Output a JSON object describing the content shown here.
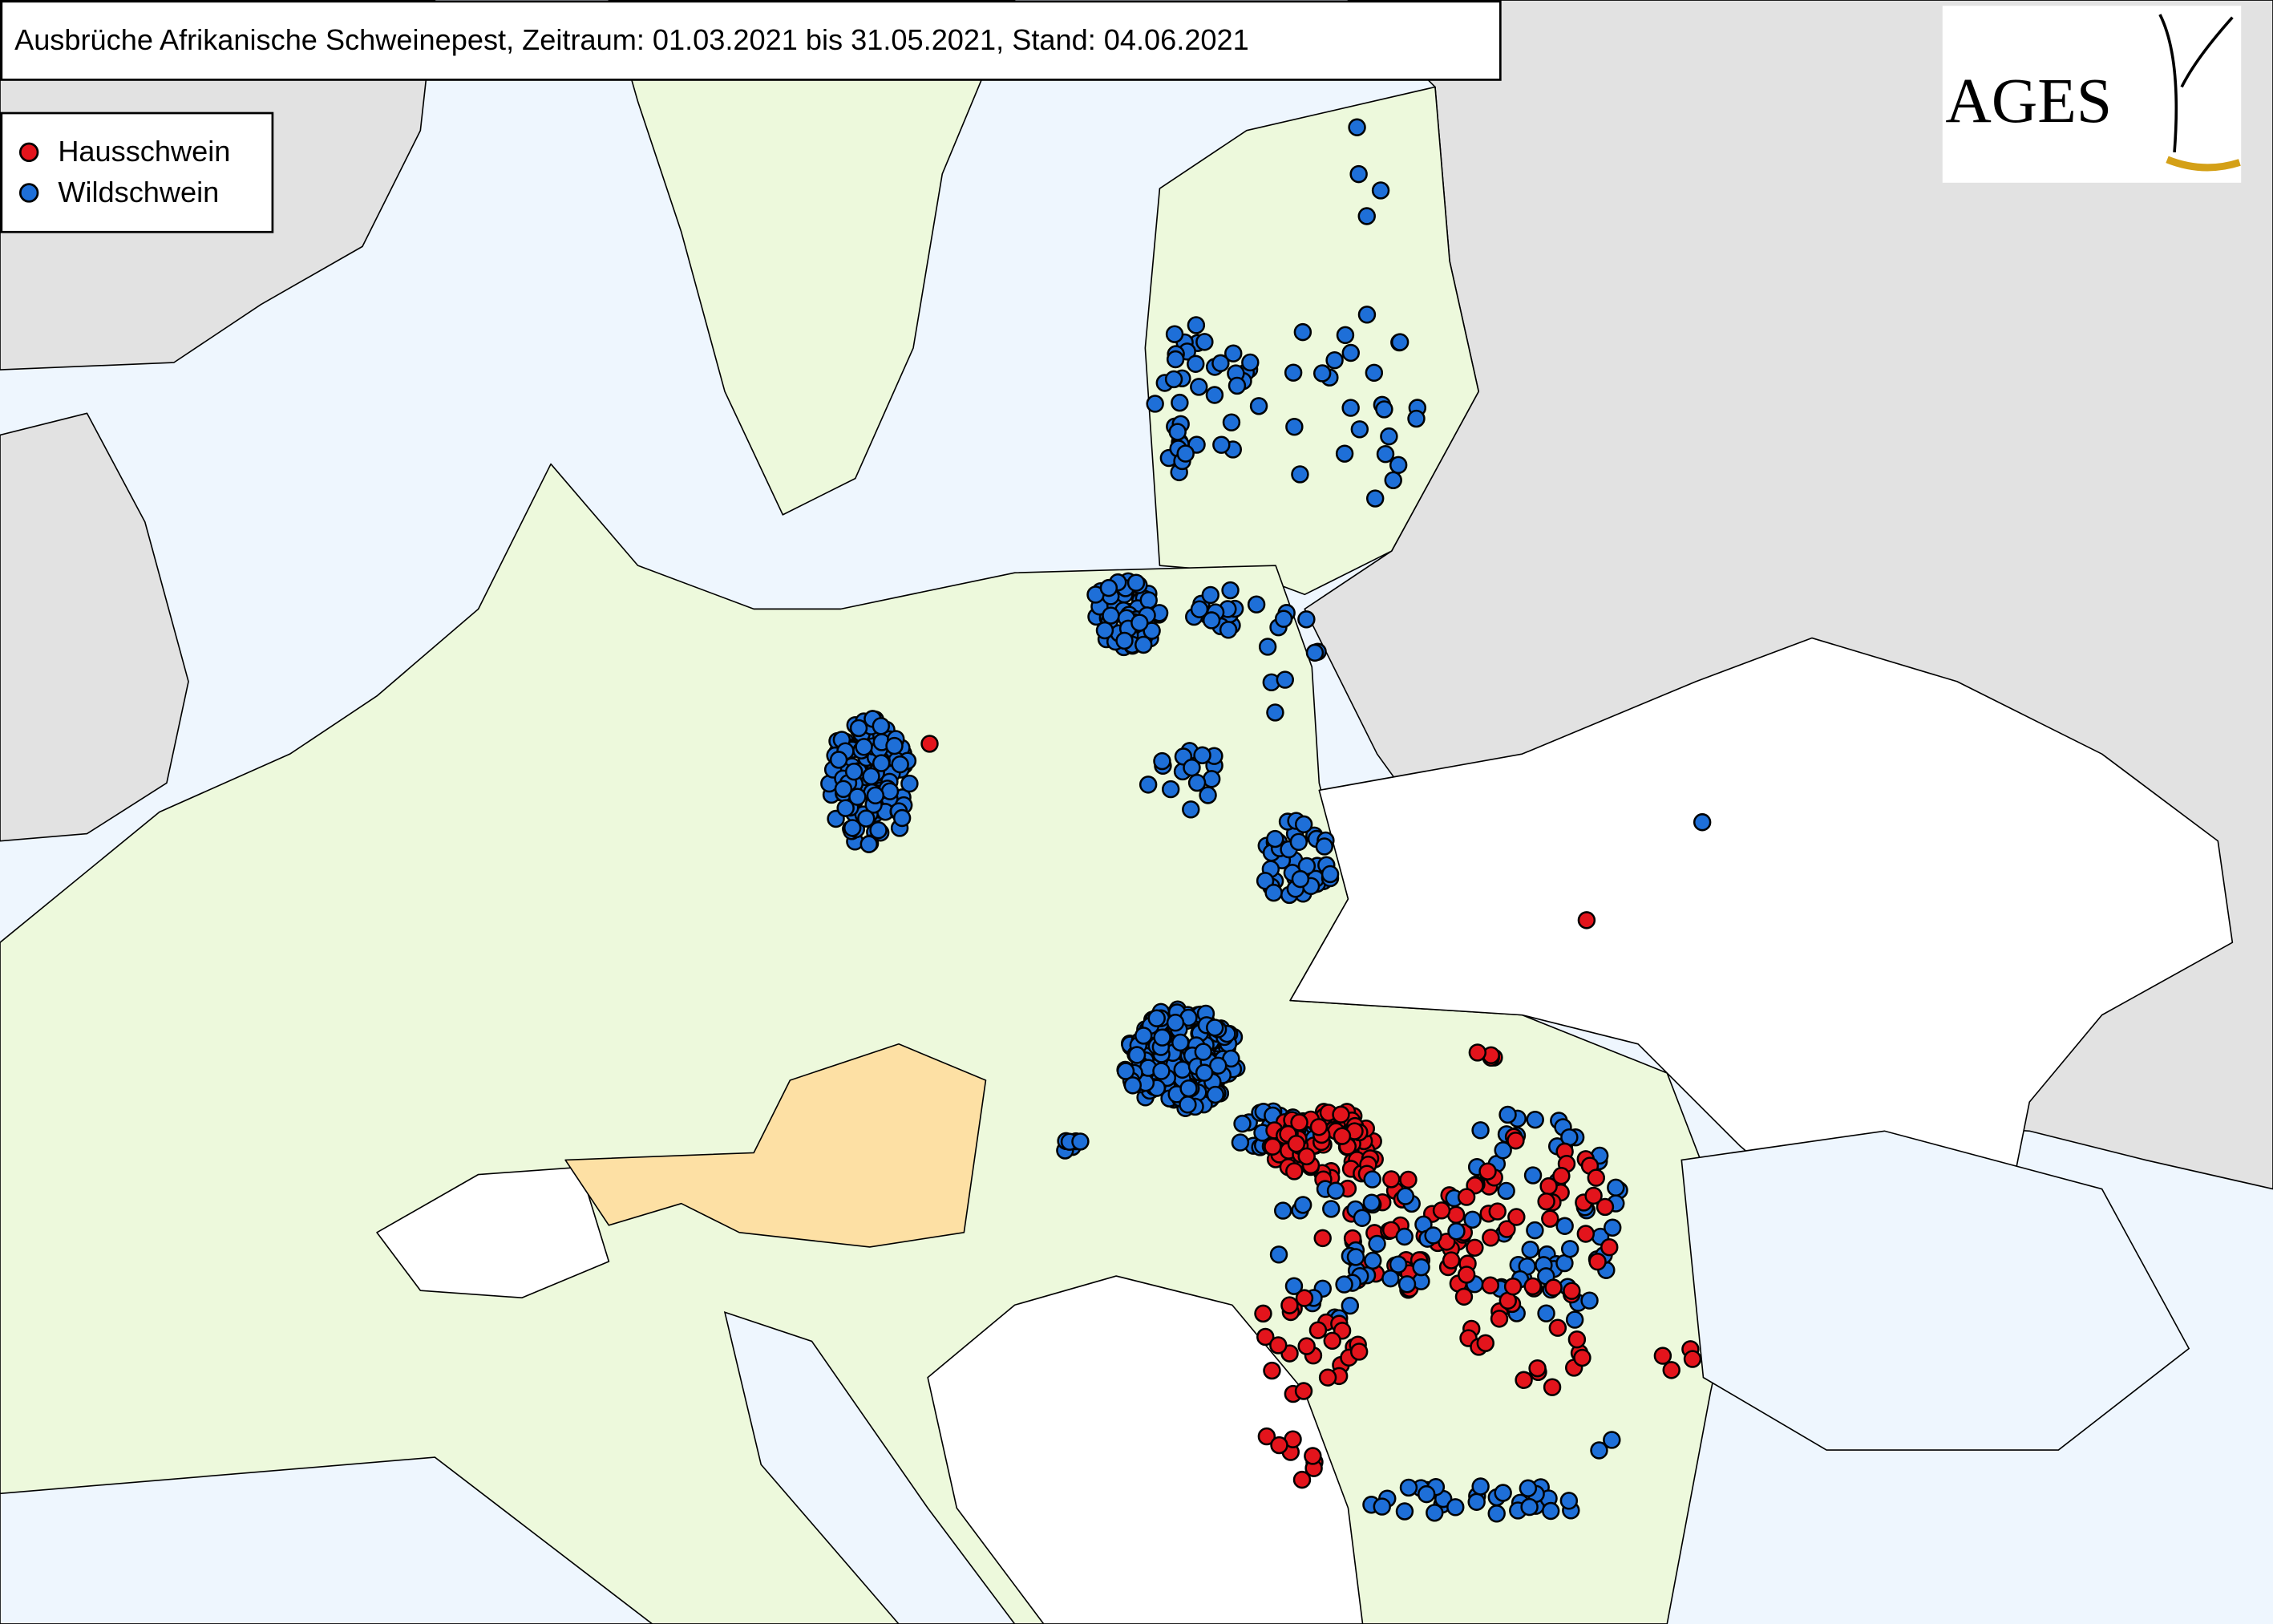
{
  "title": "Ausbrüche Afrikanische Schweinepest, Zeitraum: 01.03.2021 bis 31.05.2021, Stand: 04.06.2021",
  "legend": [
    {
      "label": "Hausschwein",
      "color": "#e3141c"
    },
    {
      "label": "Wildschwein",
      "color": "#1e6fd8"
    }
  ],
  "logo": "AGES"
}
